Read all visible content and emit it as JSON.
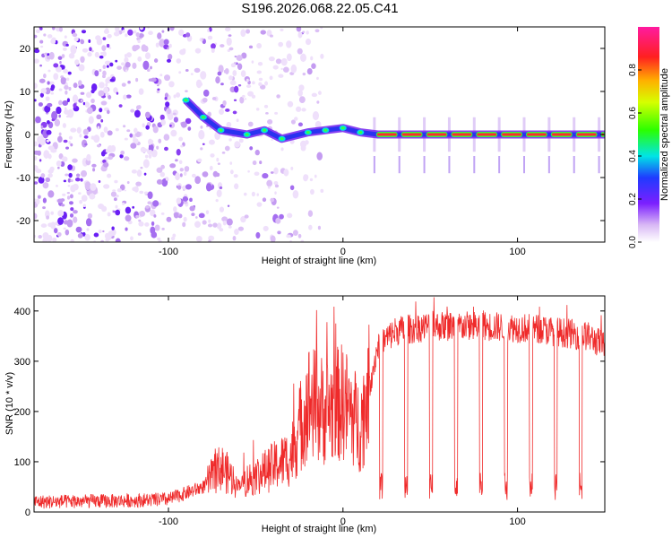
{
  "title": "S196.2026.068.22.05.C41",
  "chart_data": [
    {
      "type": "heatmap",
      "name": "spectrogram",
      "xlabel": "Height of straight line (km)",
      "ylabel": "Frequency (Hz)",
      "xlim": [
        -177,
        150
      ],
      "ylim": [
        -25,
        25
      ],
      "xticks": [
        -100,
        0,
        100
      ],
      "yticks": [
        -20,
        -10,
        0,
        10,
        20
      ],
      "colorbar": {
        "label": "Normalized spectral amplitude",
        "range": [
          0,
          1
        ],
        "ticks": [
          0,
          0.2,
          0.4,
          0.6,
          0.8
        ]
      },
      "ridge": [
        {
          "x": -90,
          "f": 8
        },
        {
          "x": -80,
          "f": 4
        },
        {
          "x": -70,
          "f": 1
        },
        {
          "x": -55,
          "f": 0
        },
        {
          "x": -45,
          "f": 1
        },
        {
          "x": -35,
          "f": -1
        },
        {
          "x": -20,
          "f": 0.5
        },
        {
          "x": -10,
          "f": 1
        },
        {
          "x": 0,
          "f": 1.5
        },
        {
          "x": 10,
          "f": 0.5
        },
        {
          "x": 20,
          "f": 0
        },
        {
          "x": 150,
          "f": 0
        }
      ],
      "line_segments": {
        "x_start": 18,
        "x_end": 150,
        "period": 14.3,
        "frequency": 0
      }
    },
    {
      "type": "line",
      "name": "snr",
      "xlabel": "Height of straight line (km)",
      "ylabel": "SNR (10 * v/v)",
      "xlim": [
        -177,
        150
      ],
      "ylim": [
        0,
        430
      ],
      "xticks": [
        -100,
        0,
        100
      ],
      "yticks": [
        0,
        100,
        200,
        300,
        400
      ],
      "series": [
        {
          "name": "SNR",
          "color": "#ef2a2a",
          "envelope": [
            {
              "x": -177,
              "y": 20
            },
            {
              "x": -130,
              "y": 22
            },
            {
              "x": -100,
              "y": 25
            },
            {
              "x": -80,
              "y": 50
            },
            {
              "x": -70,
              "y": 90
            },
            {
              "x": -60,
              "y": 55
            },
            {
              "x": -45,
              "y": 80
            },
            {
              "x": -30,
              "y": 110
            },
            {
              "x": -20,
              "y": 220
            },
            {
              "x": -10,
              "y": 200
            },
            {
              "x": 0,
              "y": 220
            },
            {
              "x": 10,
              "y": 170
            },
            {
              "x": 15,
              "y": 250
            },
            {
              "x": 20,
              "y": 330
            },
            {
              "x": 30,
              "y": 360
            },
            {
              "x": 50,
              "y": 370
            },
            {
              "x": 80,
              "y": 370
            },
            {
              "x": 110,
              "y": 365
            },
            {
              "x": 140,
              "y": 350
            },
            {
              "x": 150,
              "y": 330
            }
          ],
          "dips": {
            "x_start": 21,
            "x_end": 148,
            "period": 14.3,
            "depth": 60
          }
        }
      ]
    }
  ]
}
